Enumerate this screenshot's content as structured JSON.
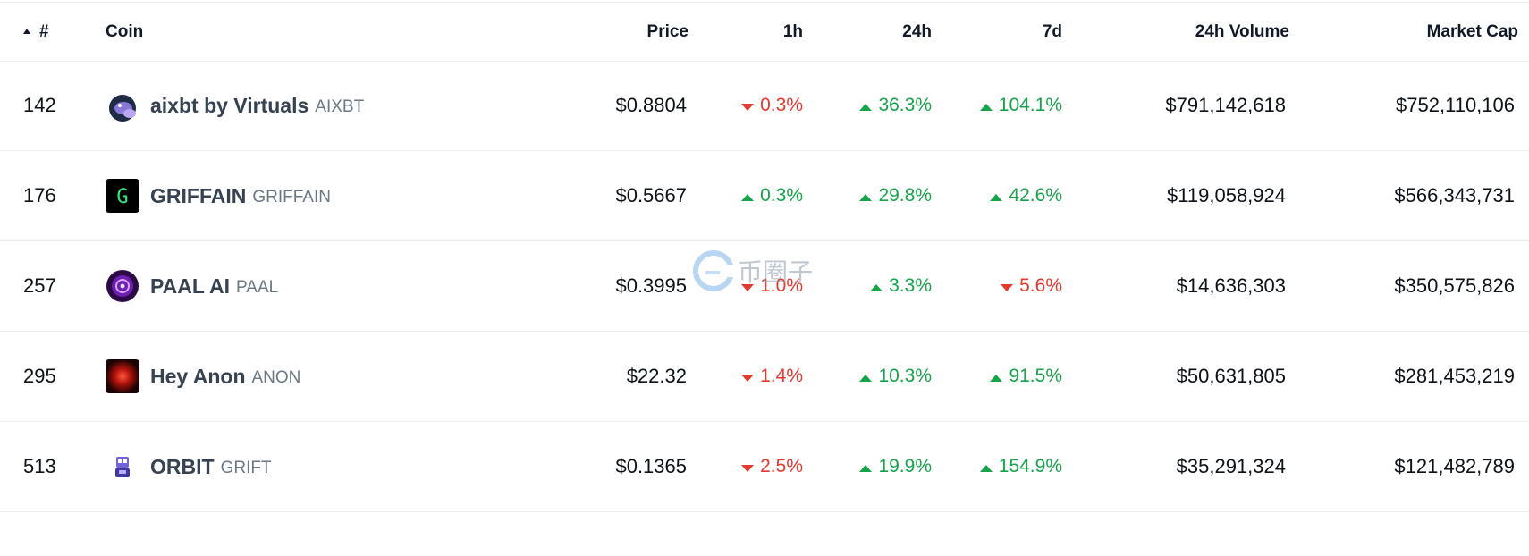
{
  "header": {
    "rank": "#",
    "coin": "Coin",
    "price": "Price",
    "h1": "1h",
    "h24": "24h",
    "d7": "7d",
    "volume": "24h Volume",
    "mcap": "Market Cap"
  },
  "rows": [
    {
      "rank": "142",
      "name": "aixbt by Virtuals",
      "symbol": "AIXBT",
      "price": "$0.8804",
      "h1": "0.3%",
      "h1_dir": "down",
      "h24": "36.3%",
      "h24_dir": "up",
      "d7": "104.1%",
      "d7_dir": "up",
      "volume": "$791,142,618",
      "mcap": "$752,110,106",
      "icon": "aixbt-logo-icon"
    },
    {
      "rank": "176",
      "name": "GRIFFAIN",
      "symbol": "GRIFFAIN",
      "price": "$0.5667",
      "h1": "0.3%",
      "h1_dir": "up",
      "h24": "29.8%",
      "h24_dir": "up",
      "d7": "42.6%",
      "d7_dir": "up",
      "volume": "$119,058,924",
      "mcap": "$566,343,731",
      "icon": "griffain-logo-icon"
    },
    {
      "rank": "257",
      "name": "PAAL AI",
      "symbol": "PAAL",
      "price": "$0.3995",
      "h1": "1.0%",
      "h1_dir": "down",
      "h24": "3.3%",
      "h24_dir": "up",
      "d7": "5.6%",
      "d7_dir": "down",
      "volume": "$14,636,303",
      "mcap": "$350,575,826",
      "icon": "paal-logo-icon"
    },
    {
      "rank": "295",
      "name": "Hey Anon",
      "symbol": "ANON",
      "price": "$22.32",
      "h1": "1.4%",
      "h1_dir": "down",
      "h24": "10.3%",
      "h24_dir": "up",
      "d7": "91.5%",
      "d7_dir": "up",
      "volume": "$50,631,805",
      "mcap": "$281,453,219",
      "icon": "anon-logo-icon"
    },
    {
      "rank": "513",
      "name": "ORBIT",
      "symbol": "GRIFT",
      "price": "$0.1365",
      "h1": "2.5%",
      "h1_dir": "down",
      "h24": "19.9%",
      "h24_dir": "up",
      "d7": "154.9%",
      "d7_dir": "up",
      "volume": "$35,291,324",
      "mcap": "$121,482,789",
      "icon": "orbit-logo-icon"
    }
  ],
  "colors": {
    "up": "#16a34a",
    "down": "#e5382f"
  },
  "watermark": {
    "text": "币圈子"
  }
}
